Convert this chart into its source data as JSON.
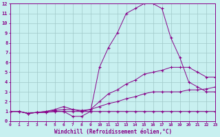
{
  "xlabel": "Windchill (Refroidissement éolien,°C)",
  "background_color": "#c8f0f0",
  "line_color": "#880088",
  "grid_color": "#a0c8c8",
  "xlim": [
    0,
    23
  ],
  "ylim": [
    0,
    12
  ],
  "xticks": [
    0,
    1,
    2,
    3,
    4,
    5,
    6,
    7,
    8,
    9,
    10,
    11,
    12,
    13,
    14,
    15,
    16,
    17,
    18,
    19,
    20,
    21,
    22,
    23
  ],
  "yticks": [
    0,
    1,
    2,
    3,
    4,
    5,
    6,
    7,
    8,
    9,
    10,
    11,
    12
  ],
  "lines": [
    {
      "x": [
        0,
        1,
        2,
        3,
        4,
        5,
        6,
        7,
        8,
        9,
        10,
        11,
        12,
        13,
        14,
        15,
        16,
        17,
        18,
        19,
        20,
        21,
        22,
        23
      ],
      "y": [
        1.0,
        1.0,
        0.8,
        0.9,
        0.9,
        1.0,
        1.0,
        1.0,
        1.0,
        1.0,
        5.5,
        7.5,
        9.0,
        11.0,
        11.5,
        12.0,
        12.0,
        11.5,
        8.5,
        6.5,
        4.0,
        3.5,
        3.0,
        3.0
      ]
    },
    {
      "x": [
        0,
        1,
        2,
        3,
        4,
        5,
        6,
        7,
        8,
        9,
        10,
        11,
        12,
        13,
        14,
        15,
        16,
        17,
        18,
        19,
        20,
        21,
        22,
        23
      ],
      "y": [
        1.0,
        1.0,
        0.8,
        0.9,
        1.0,
        1.2,
        1.5,
        1.2,
        1.0,
        1.2,
        2.0,
        2.8,
        3.2,
        3.8,
        4.2,
        4.8,
        5.0,
        5.2,
        5.5,
        5.5,
        5.5,
        5.0,
        4.5,
        4.5
      ]
    },
    {
      "x": [
        0,
        1,
        2,
        3,
        4,
        5,
        6,
        7,
        8,
        9,
        10,
        11,
        12,
        13,
        14,
        15,
        16,
        17,
        18,
        19,
        20,
        21,
        22,
        23
      ],
      "y": [
        1.0,
        1.0,
        0.8,
        0.9,
        1.0,
        1.1,
        1.2,
        1.2,
        1.1,
        1.2,
        1.5,
        1.8,
        2.0,
        2.3,
        2.5,
        2.8,
        3.0,
        3.0,
        3.0,
        3.0,
        3.2,
        3.2,
        3.3,
        3.5
      ]
    },
    {
      "x": [
        0,
        1,
        2,
        3,
        4,
        5,
        6,
        7,
        8,
        9,
        10,
        11,
        12,
        13,
        14,
        15,
        16,
        17,
        18,
        19,
        20,
        21,
        22,
        23
      ],
      "y": [
        1.0,
        1.0,
        0.8,
        0.9,
        0.9,
        1.0,
        1.0,
        0.5,
        0.5,
        1.0,
        1.0,
        1.0,
        1.0,
        1.0,
        1.0,
        1.0,
        1.0,
        1.0,
        1.0,
        1.0,
        1.0,
        1.0,
        1.0,
        1.0
      ]
    }
  ]
}
